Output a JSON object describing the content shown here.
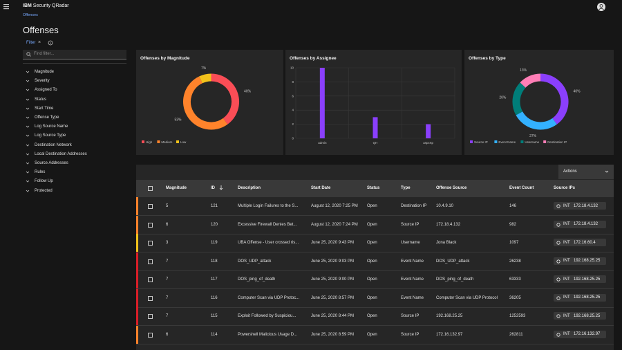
{
  "header": {
    "brand_strong": "IBM",
    "brand": "Security QRadar",
    "breadcrumb": "Offenses",
    "title": "Offenses"
  },
  "sidebar": {
    "filter": "Filter",
    "search_placeholder": "Find filter...",
    "items": [
      "Magnitude",
      "Severity",
      "Assigned To",
      "Status",
      "Start Time",
      "Offense Type",
      "Log Source Name",
      "Log Source Type",
      "Destination Network",
      "Local Destination Addresses",
      "Source Addresses",
      "Rules",
      "Follow Up",
      "Protected"
    ]
  },
  "chart_data": [
    {
      "type": "pie",
      "title": "Offenses by Magnitude",
      "categories": [
        "High",
        "Medium",
        "Low"
      ],
      "values": [
        40,
        53,
        7
      ],
      "value_labels": [
        "40%",
        "53%",
        "7%"
      ],
      "colors": [
        "#fa4d56",
        "#ff832b",
        "#f1c21b"
      ]
    },
    {
      "type": "bar",
      "title": "Offenses by Assignee",
      "categories": [
        "admin",
        "QH",
        "aspcrtp"
      ],
      "values": [
        10,
        3,
        2
      ],
      "color": "#8a3ffc",
      "ylim": [
        0,
        10
      ],
      "yticks": [
        0,
        2,
        4,
        6,
        8,
        10
      ],
      "grid": true
    },
    {
      "type": "pie",
      "title": "Offenses by Type",
      "categories": [
        "Source IP",
        "Event Name",
        "Username",
        "Destination IP"
      ],
      "values": [
        40,
        27,
        20,
        13
      ],
      "value_labels": [
        "40%",
        "27%",
        "20%",
        "13%"
      ],
      "colors": [
        "#8a3ffc",
        "#33b1ff",
        "#007d79",
        "#ff7eb6"
      ]
    }
  ],
  "table": {
    "actions": "Actions",
    "columns": [
      "Magnitude",
      "ID",
      "Description",
      "Start Date",
      "Status",
      "Type",
      "Offense Source",
      "Event Count",
      "Source IPs"
    ],
    "rows": [
      {
        "color": "#ff832b",
        "cells": [
          "5",
          "121",
          "Multiple Login Failures to the S...",
          "August 12, 2020 7:25 PM",
          "Open",
          "Destination IP",
          "10.4.9.10",
          "146"
        ],
        "tag": "INT",
        "ip": "172.18.4.132"
      },
      {
        "color": "#ff832b",
        "cells": [
          "6",
          "120",
          "Excessive Firewall Denies Bet...",
          "August 12, 2020 7:24 PM",
          "Open",
          "Source IP",
          "172.18.4.132",
          "982"
        ],
        "tag": "INT",
        "ip": "172.18.4.132"
      },
      {
        "color": "#f1c21b",
        "cells": [
          "3",
          "119",
          "UBA Offense - User crossed ris...",
          "June 25, 2020 9:43 PM",
          "Open",
          "Username",
          "Jona Black",
          "1097"
        ],
        "tag": "INT",
        "ip": "172.16.60.4"
      },
      {
        "color": "#da1e28",
        "cells": [
          "7",
          "118",
          "DOS_UDP_attack",
          "June 25, 2020 9:03 PM",
          "Open",
          "Event Name",
          "DOS_UDP_attack",
          "26238"
        ],
        "tag": "INT",
        "ip": "192.168.25.25"
      },
      {
        "color": "#da1e28",
        "cells": [
          "7",
          "117",
          "DOS_ping_of_death",
          "June 25, 2020 9:00 PM",
          "Open",
          "Event Name",
          "DOS_ping_of_death",
          "63333"
        ],
        "tag": "INT",
        "ip": "192.168.25.25"
      },
      {
        "color": "#da1e28",
        "cells": [
          "7",
          "116",
          "Computer Scan via UDP Protoc...",
          "June 25, 2020 8:57 PM",
          "Open",
          "Event Name",
          "Computer Scan via UDP Protocol",
          "36205"
        ],
        "tag": "INT",
        "ip": "192.168.25.25"
      },
      {
        "color": "#da1e28",
        "cells": [
          "7",
          "115",
          "Exploit Followed by Suspiciou...",
          "June 25, 2020 8:44 PM",
          "Open",
          "Source IP",
          "192.168.25.25",
          "1252593"
        ],
        "tag": "INT",
        "ip": "192.168.25.25"
      },
      {
        "color": "#ff832b",
        "cells": [
          "6",
          "114",
          "Powershell Malicious Usage D...",
          "June 25, 2020 8:59 PM",
          "Open",
          "Source IP",
          "172.16.132.97",
          "262811"
        ],
        "tag": "INT",
        "ip": "172.16.132.97"
      }
    ]
  }
}
